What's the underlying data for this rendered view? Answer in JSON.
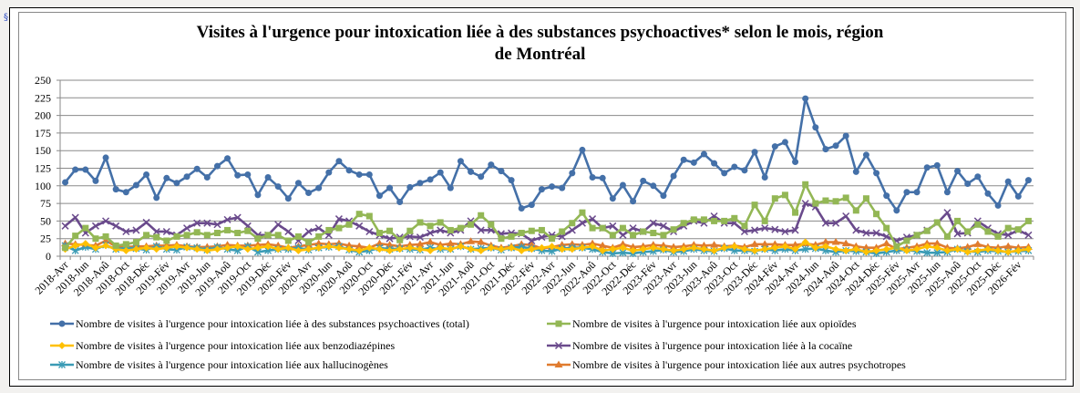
{
  "page": {
    "section_mark": "§"
  },
  "chart_data": {
    "type": "line",
    "title": "Visites à l'urgence pour intoxication liée à des substances psychoactives* selon le mois, région de Montréal",
    "title_lines": [
      "Visites à l'urgence pour intoxication liée à des substances psychoactives* selon le mois, région",
      "de Montréal"
    ],
    "xlabel": "",
    "ylabel": "",
    "ylim": [
      0,
      250
    ],
    "yticks": [
      0,
      25,
      50,
      75,
      100,
      125,
      150,
      175,
      200,
      225,
      250
    ],
    "grid": true,
    "legend_position": "bottom",
    "x_start": "2018-04",
    "x_end": "2026-03",
    "xtick_labels": [
      "2018-Avr",
      "2018-Jun",
      "2018-Aoû",
      "2018-Oct",
      "2018-Déc",
      "2019-Fév",
      "2019-Avr",
      "2019-Jun",
      "2019-Aoû",
      "2019-Oct",
      "2019-Déc",
      "2020-Fév",
      "2020-Avr",
      "2020-Jun",
      "2020-Aoû",
      "2020-Oct",
      "2020-Déc",
      "2021-Fév",
      "2021-Avr",
      "2021-Jun",
      "2021-Aoû",
      "2021-Oct",
      "2021-Déc",
      "2022-Fév",
      "2022-Avr",
      "2022-Jun",
      "2022-Aoû",
      "2022-Oct",
      "2022-Déc",
      "2023-Fév",
      "2023-Avr",
      "2023-Jun",
      "2023-Aoû",
      "2023-Oct",
      "2023-Déc",
      "2024-Fév",
      "2024-Avr",
      "2024-Jun",
      "2024-Aoû",
      "2024-Oct",
      "2024-Déc",
      "2025-Fév",
      "2025-Avr",
      "2025-Jun",
      "2025-Aoû",
      "2025-Oct",
      "2025-Déc",
      "2026-Fév"
    ],
    "series": [
      {
        "name": "Nombre de visites à l'urgence pour intoxication liée à des substances psychoactives (total)",
        "color": "#4470a8",
        "marker": "circle",
        "values": [
          105,
          123,
          123,
          107,
          140,
          95,
          91,
          101,
          116,
          83,
          111,
          104,
          113,
          124,
          112,
          128,
          139,
          115,
          116,
          87,
          112,
          99,
          82,
          104,
          90,
          97,
          119,
          135,
          122,
          116,
          116,
          86,
          97,
          77,
          98,
          104,
          109,
          119,
          97,
          135,
          120,
          113,
          130,
          121,
          108,
          68,
          73,
          95,
          99,
          97,
          118,
          151,
          112,
          111,
          82,
          101,
          78,
          107,
          100,
          86,
          114,
          137,
          133,
          145,
          132,
          118,
          127,
          122,
          148,
          112,
          156,
          162,
          134,
          224,
          183,
          152,
          157,
          171,
          120,
          144,
          118,
          86,
          65,
          91,
          91,
          126,
          129,
          91,
          121,
          103,
          113,
          89,
          72,
          106,
          85,
          108
        ]
      },
      {
        "name": "Nombre de visites à l'urgence pour intoxication liée aux opioïdes",
        "color": "#93b755",
        "marker": "square",
        "values": [
          12,
          29,
          40,
          25,
          28,
          15,
          17,
          20,
          30,
          27,
          22,
          28,
          30,
          34,
          30,
          33,
          37,
          33,
          36,
          25,
          30,
          30,
          22,
          28,
          20,
          28,
          37,
          40,
          45,
          60,
          57,
          33,
          36,
          23,
          36,
          48,
          43,
          48,
          37,
          40,
          45,
          58,
          45,
          25,
          28,
          33,
          36,
          37,
          25,
          35,
          47,
          62,
          40,
          40,
          30,
          40,
          30,
          35,
          33,
          30,
          38,
          47,
          52,
          52,
          50,
          50,
          54,
          43,
          73,
          50,
          82,
          87,
          62,
          102,
          75,
          79,
          78,
          83,
          65,
          82,
          60,
          40,
          14,
          22,
          30,
          36,
          48,
          28,
          50,
          35,
          45,
          35,
          28,
          40,
          38,
          50
        ]
      },
      {
        "name": "Nombre de visites à l'urgence pour intoxication liée aux benzodiazépines",
        "color": "#ffc000",
        "marker": "diamond",
        "values": [
          10,
          15,
          18,
          12,
          15,
          10,
          8,
          10,
          12,
          10,
          12,
          14,
          12,
          10,
          8,
          10,
          12,
          14,
          10,
          12,
          14,
          10,
          12,
          8,
          10,
          12,
          14,
          12,
          10,
          8,
          12,
          10,
          8,
          10,
          12,
          10,
          8,
          12,
          10,
          14,
          10,
          8,
          12,
          10,
          12,
          8,
          10,
          12,
          14,
          10,
          10,
          12,
          14,
          8,
          10,
          12,
          8,
          10,
          12,
          10,
          8,
          10,
          12,
          10,
          8,
          12,
          14,
          10,
          8,
          10,
          12,
          14,
          10,
          20,
          12,
          14,
          10,
          8,
          10,
          6,
          8,
          10,
          12,
          8,
          10,
          14,
          12,
          8,
          10,
          6,
          8,
          10,
          8,
          6,
          8,
          10
        ]
      },
      {
        "name": "Nombre de visites à l'urgence pour intoxication liée à la cocaïne",
        "color": "#6a4a8c",
        "marker": "x",
        "values": [
          43,
          55,
          33,
          43,
          50,
          43,
          35,
          37,
          48,
          35,
          35,
          30,
          40,
          47,
          47,
          45,
          52,
          55,
          43,
          30,
          30,
          45,
          35,
          22,
          35,
          40,
          30,
          53,
          50,
          43,
          35,
          30,
          25,
          27,
          28,
          27,
          33,
          37,
          33,
          37,
          50,
          37,
          37,
          32,
          33,
          32,
          22,
          27,
          30,
          28,
          37,
          47,
          53,
          40,
          43,
          30,
          40,
          35,
          47,
          43,
          35,
          43,
          50,
          47,
          57,
          47,
          47,
          35,
          37,
          40,
          38,
          35,
          37,
          75,
          70,
          47,
          47,
          57,
          37,
          33,
          33,
          28,
          22,
          27,
          30,
          37,
          47,
          62,
          32,
          33,
          50,
          40,
          32,
          30,
          37,
          30
        ]
      },
      {
        "name": "Nombre de visites à l'urgence pour intoxication liée aux hallucinogènes",
        "color": "#3a9bb5",
        "marker": "star",
        "values": [
          15,
          8,
          13,
          10,
          16,
          10,
          12,
          11,
          9,
          14,
          10,
          9,
          13,
          12,
          9,
          13,
          10,
          8,
          14,
          6,
          8,
          10,
          10,
          12,
          9,
          12,
          13,
          14,
          9,
          6,
          8,
          12,
          10,
          11,
          10,
          9,
          12,
          10,
          10,
          14,
          10,
          11,
          12,
          9,
          12,
          13,
          11,
          8,
          7,
          11,
          12,
          12,
          10,
          6,
          4,
          5,
          4,
          6,
          7,
          9,
          6,
          7,
          10,
          8,
          7,
          11,
          8,
          8,
          7,
          10,
          8,
          10,
          8,
          10,
          11,
          8,
          6,
          8,
          7,
          6,
          4,
          6,
          8,
          9,
          7,
          5,
          5,
          6,
          10,
          7,
          6,
          8,
          7,
          6,
          7,
          8
        ]
      },
      {
        "name": "Nombre de visites à l'urgence pour intoxication liée aux autres psychotropes",
        "color": "#e07b2e",
        "marker": "triangle",
        "values": [
          18,
          17,
          16,
          15,
          22,
          14,
          13,
          14,
          14,
          15,
          15,
          16,
          14,
          13,
          13,
          14,
          16,
          15,
          15,
          16,
          17,
          15,
          12,
          14,
          16,
          18,
          17,
          18,
          15,
          14,
          12,
          18,
          16,
          14,
          16,
          17,
          20,
          16,
          18,
          17,
          21,
          20,
          15,
          12,
          14,
          17,
          16,
          11,
          13,
          16,
          17,
          16,
          18,
          15,
          12,
          17,
          13,
          14,
          16,
          15,
          13,
          14,
          16,
          15,
          16,
          14,
          15,
          13,
          17,
          17,
          17,
          16,
          16,
          18,
          16,
          20,
          20,
          18,
          14,
          12,
          12,
          18,
          10,
          12,
          14,
          18,
          18,
          12,
          11,
          13,
          17,
          13,
          12,
          14,
          12,
          13
        ]
      }
    ]
  }
}
